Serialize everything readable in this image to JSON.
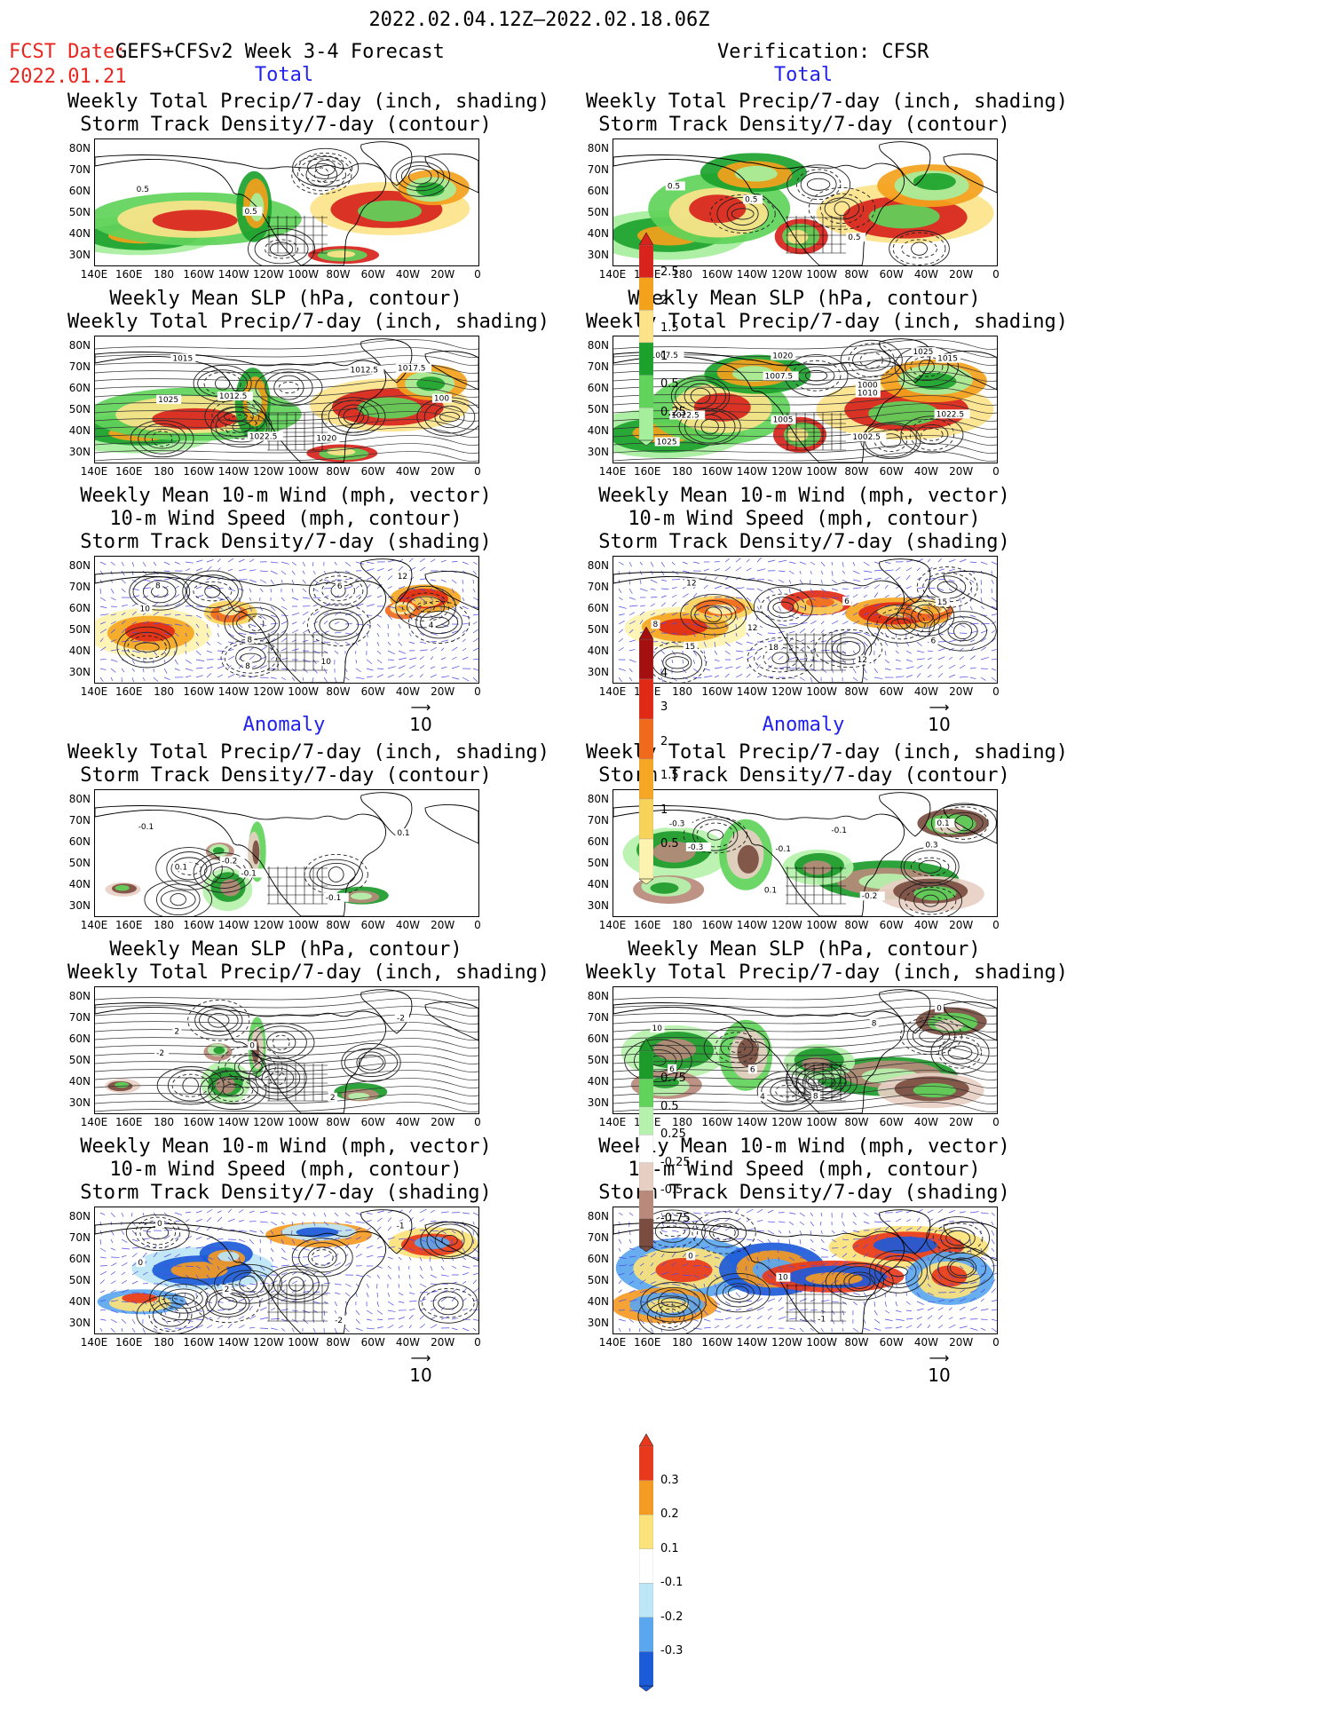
{
  "header": {
    "period": "2022.02.04.12Z–2022.02.18.06Z",
    "fcst_label": "FCST Date:",
    "fcst_model": "GEFS+CFSv2 Week 3-4 Forecast",
    "fcst_date": "2022.01.21",
    "verification": "Verification: CFSR"
  },
  "sections": {
    "total": "Total",
    "anomaly": "Anomaly"
  },
  "panel_titles": {
    "precip_storm": "Weekly Total Precip/7-day (inch, shading)\nStorm Track Density/7-day (contour)",
    "slp_precip": "Weekly Mean SLP (hPa, contour)\nWeekly Total Precip/7-day (inch, shading)",
    "wind_storm": "Weekly Mean 10-m Wind (mph, vector)\n10-m Wind Speed (mph, contour)\nStorm Track Density/7-day (shading)"
  },
  "axes": {
    "lat_ticks": [
      "80N",
      "70N",
      "60N",
      "50N",
      "40N",
      "30N"
    ],
    "lon_ticks": [
      "140E",
      "160E",
      "180",
      "160W",
      "140W",
      "120W",
      "100W",
      "80W",
      "60W",
      "40W",
      "20W",
      "0"
    ]
  },
  "vector_ref": "10",
  "colorbars": {
    "precip_total": {
      "labels": [
        "2.5",
        "2",
        "1.5",
        "1",
        "0.5",
        "0.25"
      ],
      "colors": [
        "#d8231c",
        "#f4a11c",
        "#fce38a",
        "#1ca22c",
        "#5fd35a",
        "#a6ef9d"
      ]
    },
    "storm_total": {
      "labels": [
        "4",
        "3",
        "2",
        "1.5",
        "1",
        "0.5"
      ],
      "colors": [
        "#a41010",
        "#e02a15",
        "#f06a1c",
        "#f5a623",
        "#f8d35a",
        "#fdf3b0"
      ]
    },
    "precip_anom": {
      "labels": [
        "0.75",
        "0.5",
        "0.25",
        "-0.25",
        "-0.5",
        "-0.75"
      ],
      "colors": [
        "#1c9a2a",
        "#5fd35a",
        "#b6f2ad",
        "#ffffff",
        "#e8cfc4",
        "#b98a7c",
        "#7a4d40"
      ]
    },
    "storm_anom": {
      "labels": [
        "0.3",
        "0.2",
        "0.1",
        "-0.1",
        "-0.2",
        "-0.3"
      ],
      "colors": [
        "#e8391c",
        "#f59a23",
        "#fbe27a",
        "#ffffff",
        "#bde6f7",
        "#5aa6ef",
        "#1c5bd8"
      ]
    }
  },
  "contour_labels": {
    "fc_precip_total": [
      "0.5",
      "0.5"
    ],
    "cfsr_precip_total": [
      "0.5",
      "0.5",
      "0.5"
    ],
    "fc_slp_total": [
      "1015",
      "1012.5",
      "1020",
      "1017.5",
      "1025",
      "1022.5",
      "1012.5",
      "100"
    ],
    "cfsr_slp_total": [
      "1007.5",
      "1005",
      "1002.5",
      "1015",
      "1022.5",
      "1020",
      "1000",
      "1022.5",
      "1025",
      "1007.5",
      "1010",
      "1025"
    ],
    "fc_wind_total": [
      "8",
      "8",
      "10",
      "12",
      "10",
      "8",
      "6",
      "4"
    ],
    "cfsr_wind_total": [
      "12",
      "12",
      "12",
      "15",
      "8",
      "18",
      "6",
      "6",
      "15"
    ],
    "fc_precip_anom": [
      "-0.1",
      "-0.2",
      "-0.1",
      "0.1",
      "0.1",
      "-0.1"
    ],
    "cfsr_precip_anom": [
      "-0.3",
      "-0.1",
      "-0.2",
      "0.1",
      "-0.3",
      "0.1",
      "-0.1",
      "0.3"
    ],
    "fc_slp_anom": [
      "2",
      "0",
      "2",
      "-2",
      "-2"
    ],
    "cfsr_slp_anom": [
      "10",
      "6",
      "8",
      "0",
      "6",
      "4",
      "8"
    ],
    "fc_wind_anom": [
      "0",
      "2",
      "-2",
      "-1",
      "0"
    ],
    "cfsr_wind_anom": [
      "0",
      "10",
      "-1"
    ]
  }
}
